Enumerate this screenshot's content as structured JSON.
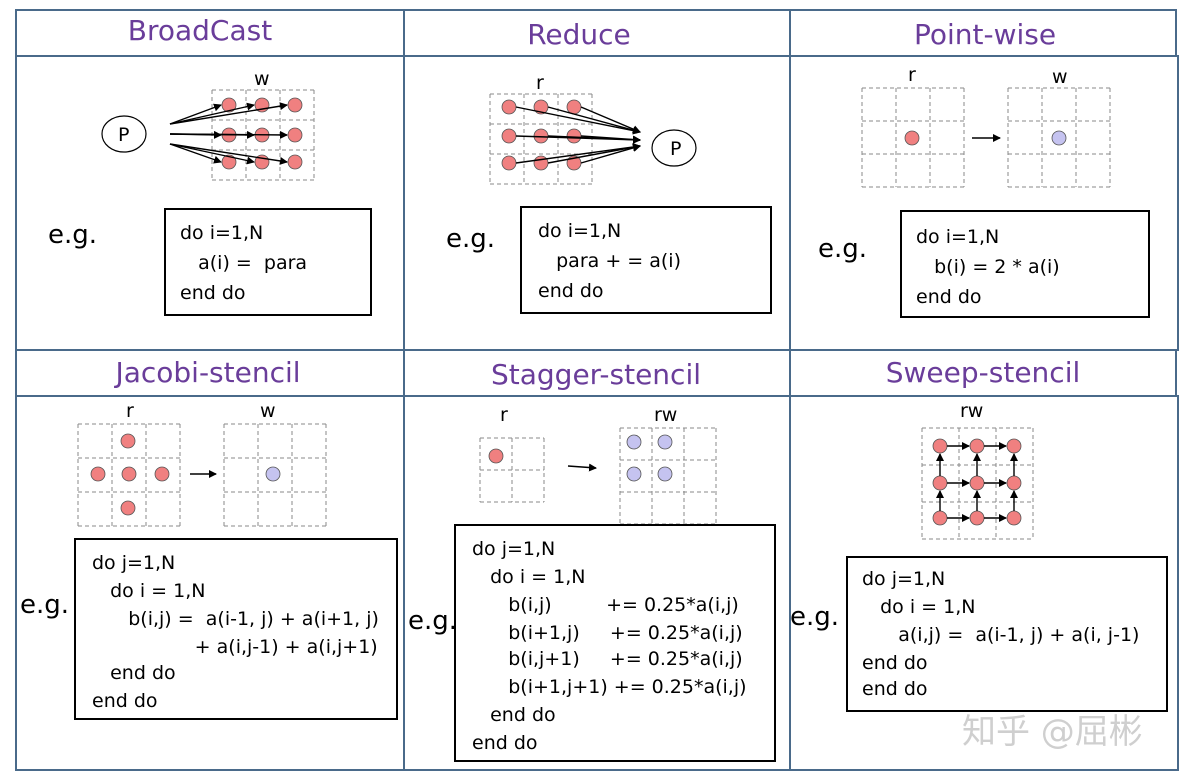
{
  "panels": [
    {
      "title": "BroadCast",
      "eg": "e.g.",
      "labels": {
        "w": "w",
        "p": "P"
      },
      "code": [
        "do i=1,N",
        "   a(i) =  para",
        "end do"
      ]
    },
    {
      "title": "Reduce",
      "eg": "e.g.",
      "labels": {
        "r": "r",
        "p": "P"
      },
      "code": [
        "do i=1,N",
        "   para + = a(i)",
        "end do"
      ]
    },
    {
      "title": "Point-wise",
      "eg": "e.g.",
      "labels": {
        "r": "r",
        "w": "w"
      },
      "code": [
        "do i=1,N",
        "   b(i) = 2 * a(i)",
        "end do"
      ]
    },
    {
      "title": "Jacobi-stencil",
      "eg": "e.g.",
      "labels": {
        "r": "r",
        "w": "w"
      },
      "code": [
        "do j=1,N",
        "   do i = 1,N",
        "      b(i,j) =  a(i-1, j) + a(i+1, j)",
        "                 + a(i,j-1) + a(i,j+1)",
        "   end do",
        "end do"
      ]
    },
    {
      "title": "Stagger-stencil",
      "eg": "e.g.",
      "labels": {
        "r": "r",
        "rw": "rw"
      },
      "code": [
        "do j=1,N",
        "   do i = 1,N",
        "      b(i,j)         += 0.25*a(i,j)",
        "      b(i+1,j)     += 0.25*a(i,j)",
        "      b(i,j+1)     += 0.25*a(i,j)",
        "      b(i+1,j+1) += 0.25*a(i,j)",
        "   end do",
        "end do"
      ]
    },
    {
      "title": "Sweep-stencil",
      "eg": "e.g.",
      "labels": {
        "rw": "rw"
      },
      "code": [
        "do j=1,N",
        "   do i = 1,N",
        "      a(i,j) =  a(i-1, j) + a(i, j-1)",
        "end do",
        "end do"
      ]
    }
  ],
  "watermark": "知乎 @屈彬",
  "colors": {
    "title": "#6a3d9a",
    "read_dot": "#f08080",
    "write_dot": "#c5c3f0",
    "border": "#4a6a8a",
    "grid": "#8a8a8a"
  }
}
